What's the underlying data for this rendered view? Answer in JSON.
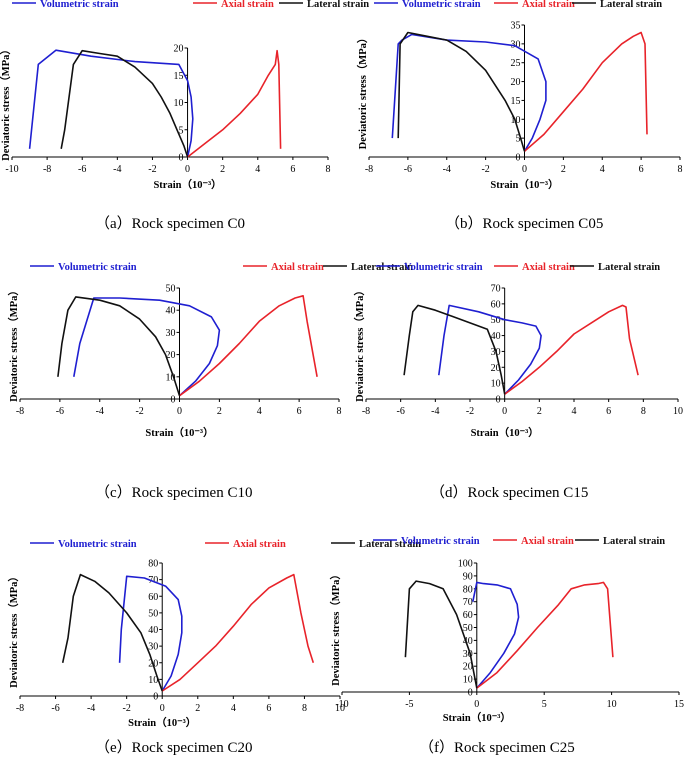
{
  "colors": {
    "volumetric": "#1f1fd1",
    "axial": "#e8232a",
    "lateral": "#111111"
  },
  "legend": {
    "volumetric": "Volumetric strain",
    "axial": "Axial strain",
    "lateral": "Lateral strain"
  },
  "chart_data": [
    {
      "type": "line",
      "title": "Rock specimen C0",
      "caption_prefix": "（a）",
      "xlabel": "Strain（10⁻³）",
      "ylabel": "Deviatoric stress（MPa）",
      "xlim": [
        -10,
        8
      ],
      "ylim": [
        0,
        20
      ],
      "xticks": [
        -10,
        -8,
        -6,
        -4,
        -2,
        0,
        2,
        4,
        6,
        8
      ],
      "yticks": [
        0,
        5,
        10,
        15,
        20
      ],
      "series": [
        {
          "name": "Volumetric strain",
          "x": [
            0,
            0.2,
            0.3,
            0.2,
            0,
            -0.5,
            -3,
            -5.5,
            -7.5,
            -8.5,
            -9
          ],
          "y": [
            0,
            3,
            7,
            11,
            14,
            17,
            17.5,
            18.5,
            19.6,
            17,
            1.5
          ]
        },
        {
          "name": "Axial strain",
          "x": [
            0,
            1,
            2,
            3,
            4,
            4.6,
            5,
            5.1,
            5.2,
            5.3
          ],
          "y": [
            0,
            2.5,
            5,
            8,
            11.5,
            15,
            17,
            19.5,
            17,
            1.5
          ]
        },
        {
          "name": "Lateral strain",
          "x": [
            0,
            -0.2,
            -0.6,
            -1,
            -1.5,
            -2,
            -3,
            -4,
            -5,
            -6,
            -6.5,
            -7,
            -7.2
          ],
          "y": [
            0,
            2,
            5,
            8,
            11,
            13.5,
            16.5,
            18.5,
            19,
            19.5,
            17,
            5,
            1.5
          ]
        }
      ]
    },
    {
      "type": "line",
      "title": "Rock specimen C05",
      "caption_prefix": "（b）",
      "xlabel": "Strain（10⁻³）",
      "ylabel": "Deviatoric stress（MPa）",
      "xlim": [
        -8,
        8
      ],
      "ylim": [
        0,
        35
      ],
      "xticks": [
        -8,
        -6,
        -4,
        -2,
        0,
        2,
        4,
        6,
        8
      ],
      "yticks": [
        0,
        5,
        10,
        15,
        20,
        25,
        30,
        35
      ],
      "series": [
        {
          "name": "Volumetric strain",
          "x": [
            0,
            0.4,
            0.8,
            1.1,
            1.1,
            0.7,
            -0.5,
            -2,
            -4,
            -5.8,
            -6.3,
            -6.5,
            -6.8
          ],
          "y": [
            1.5,
            5,
            10,
            15,
            20,
            26,
            29.5,
            30.5,
            31,
            32.5,
            31,
            30,
            5
          ]
        },
        {
          "name": "Axial strain",
          "x": [
            0,
            1,
            2,
            3,
            4,
            5,
            5.6,
            6.0,
            6.2,
            6.3
          ],
          "y": [
            1.5,
            6,
            12,
            18,
            25,
            30,
            32,
            33,
            30,
            6
          ]
        },
        {
          "name": "Lateral strain",
          "x": [
            0,
            -0.2,
            -0.5,
            -1,
            -2,
            -3,
            -4,
            -5,
            -6,
            -6.4,
            -6.5
          ],
          "y": [
            1.5,
            5,
            10,
            15,
            23,
            28,
            31,
            32,
            33,
            30,
            5
          ]
        }
      ]
    },
    {
      "type": "line",
      "title": "Rock specimen C10",
      "caption_prefix": "（c）",
      "xlabel": "Strain（10⁻³）",
      "ylabel": "Deviatoric stress（MPa）",
      "xlim": [
        -8,
        8
      ],
      "ylim": [
        0,
        50
      ],
      "xticks": [
        -8,
        -6,
        -4,
        -2,
        0,
        2,
        4,
        6,
        8
      ],
      "yticks": [
        0,
        10,
        20,
        30,
        40,
        50
      ],
      "series": [
        {
          "name": "Volumetric strain",
          "x": [
            0,
            0.8,
            1.5,
            1.9,
            2.0,
            1.6,
            0.5,
            -1,
            -3,
            -4.3,
            -5,
            -5.3
          ],
          "y": [
            1.5,
            8,
            16,
            24,
            31,
            37,
            42,
            44.5,
            45.5,
            45.5,
            25,
            10
          ]
        },
        {
          "name": "Axial strain",
          "x": [
            0,
            1,
            2,
            3,
            4,
            5,
            5.8,
            6.2,
            6.4,
            6.9
          ],
          "y": [
            1.5,
            8,
            16,
            25,
            35,
            42,
            45.5,
            46.5,
            35,
            10
          ]
        },
        {
          "name": "Lateral strain",
          "x": [
            0,
            -0.3,
            -0.7,
            -1.2,
            -2,
            -3,
            -4,
            -5.2,
            -5.6,
            -5.9,
            -6.1
          ],
          "y": [
            1.5,
            10,
            20,
            28,
            36,
            42,
            44.5,
            46,
            40,
            25,
            10
          ]
        }
      ]
    },
    {
      "type": "line",
      "title": "Rock specimen C15",
      "caption_prefix": "（d）",
      "xlabel": "Strain（10⁻³）",
      "ylabel": "Deviatoric stress（MPa）",
      "xlim": [
        -8,
        10
      ],
      "ylim": [
        0,
        70
      ],
      "xticks": [
        -8,
        -6,
        -4,
        -2,
        0,
        2,
        4,
        6,
        8,
        10
      ],
      "yticks": [
        0,
        10,
        20,
        30,
        40,
        50,
        60,
        70
      ],
      "series": [
        {
          "name": "Volumetric strain",
          "x": [
            0,
            0.8,
            1.5,
            2.0,
            2.1,
            1.8,
            1.0,
            0,
            -1.5,
            -3.2,
            -3.5,
            -3.8
          ],
          "y": [
            3,
            12,
            22,
            32,
            40,
            46,
            48,
            50,
            55,
            59,
            40,
            15
          ]
        },
        {
          "name": "Axial strain",
          "x": [
            0,
            1,
            2,
            3,
            4,
            5,
            6,
            6.8,
            7.0,
            7.2,
            7.7
          ],
          "y": [
            3,
            11,
            20,
            30,
            41,
            48,
            55,
            59,
            58,
            38,
            15
          ]
        },
        {
          "name": "Lateral strain",
          "x": [
            0,
            -0.2,
            -0.5,
            -1,
            -2,
            -3,
            -4,
            -5,
            -5.3,
            -5.5,
            -5.8
          ],
          "y": [
            3,
            15,
            30,
            44,
            48,
            52,
            56,
            59,
            55,
            40,
            15
          ]
        }
      ]
    },
    {
      "type": "line",
      "title": "Rock specimen C20",
      "caption_prefix": "（e）",
      "xlabel": "Strain（10⁻³）",
      "ylabel": "Deviatoric stress（MPa）",
      "xlim": [
        -8,
        10
      ],
      "ylim": [
        0,
        80
      ],
      "xticks": [
        -8,
        -6,
        -4,
        -2,
        0,
        2,
        4,
        6,
        8,
        10
      ],
      "yticks": [
        0,
        10,
        20,
        30,
        40,
        50,
        60,
        70,
        80
      ],
      "series": [
        {
          "name": "Volumetric strain",
          "x": [
            0,
            0.5,
            0.9,
            1.1,
            1.1,
            0.9,
            0.2,
            -1,
            -2,
            -2.3,
            -2.4
          ],
          "y": [
            3,
            12,
            25,
            38,
            48,
            58,
            66,
            71,
            72,
            40,
            20
          ]
        },
        {
          "name": "Axial strain",
          "x": [
            0,
            1,
            2,
            3,
            4,
            5,
            6,
            7,
            7.4,
            7.8,
            8.2,
            8.5
          ],
          "y": [
            3,
            10,
            20,
            30,
            42,
            55,
            65,
            71,
            73,
            50,
            30,
            20
          ]
        },
        {
          "name": "Lateral strain",
          "x": [
            0,
            -0.3,
            -0.7,
            -1.2,
            -2,
            -3,
            -3.8,
            -4.6,
            -5.0,
            -5.3,
            -5.6
          ],
          "y": [
            3,
            12,
            25,
            38,
            50,
            62,
            69,
            73,
            60,
            35,
            20
          ]
        }
      ]
    },
    {
      "type": "line",
      "title": "Rock specimen C25",
      "caption_prefix": "（f）",
      "xlabel": "Strain（10⁻³）",
      "ylabel": "Deviatoric stress（MPa）",
      "xlim": [
        -10,
        15
      ],
      "ylim": [
        0,
        100
      ],
      "xticks": [
        -10,
        -5,
        0,
        5,
        10,
        15
      ],
      "yticks": [
        0,
        10,
        20,
        30,
        40,
        50,
        60,
        70,
        80,
        90,
        100
      ],
      "series": [
        {
          "name": "Volumetric strain",
          "x": [
            0,
            1,
            2,
            2.8,
            3.1,
            3.0,
            2.5,
            1.5,
            0.5,
            0,
            -0.3
          ],
          "y": [
            3,
            15,
            30,
            45,
            58,
            68,
            80,
            83,
            84,
            85,
            70
          ]
        },
        {
          "name": "Axial strain",
          "x": [
            0,
            1.5,
            3,
            4.5,
            6,
            7,
            8,
            9,
            9.4,
            9.7,
            10.1
          ],
          "y": [
            3,
            15,
            32,
            50,
            67,
            80,
            83,
            84,
            85,
            80,
            27
          ]
        },
        {
          "name": "Lateral strain",
          "x": [
            0,
            -0.5,
            -1.5,
            -2.5,
            -3.5,
            -4.5,
            -5.0,
            -5.3
          ],
          "y": [
            3,
            30,
            60,
            80,
            84,
            86,
            80,
            27
          ]
        }
      ]
    }
  ]
}
